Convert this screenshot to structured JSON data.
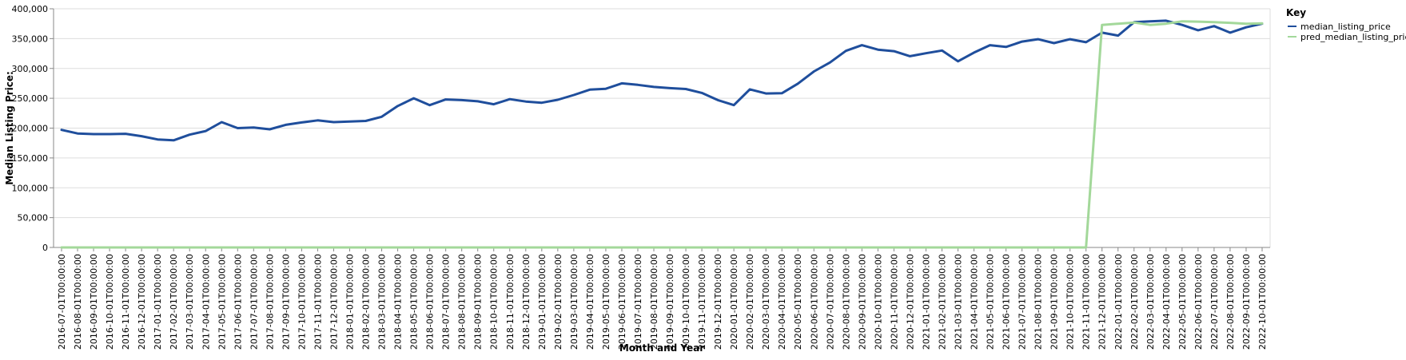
{
  "chart_data": {
    "type": "line",
    "xlabel": "Month and Year",
    "ylabel": "Median Listing Price:",
    "ylim": [
      0,
      400000
    ],
    "y_ticks": [
      0,
      50000,
      100000,
      150000,
      200000,
      250000,
      300000,
      350000,
      400000
    ],
    "y_tick_labels": [
      "0",
      "50,000",
      "100,000",
      "150,000",
      "200,000",
      "250,000",
      "300,000",
      "350,000",
      "400,000"
    ],
    "grid": true,
    "legend": {
      "title": "Key",
      "placement": "top-right"
    },
    "x": [
      "2016-07-01T00:00:00",
      "2016-08-01T00:00:00",
      "2016-09-01T00:00:00",
      "2016-10-01T00:00:00",
      "2016-11-01T00:00:00",
      "2016-12-01T00:00:00",
      "2017-01-01T00:00:00",
      "2017-02-01T00:00:00",
      "2017-03-01T00:00:00",
      "2017-04-01T00:00:00",
      "2017-05-01T00:00:00",
      "2017-06-01T00:00:00",
      "2017-07-01T00:00:00",
      "2017-08-01T00:00:00",
      "2017-09-01T00:00:00",
      "2017-10-01T00:00:00",
      "2017-11-01T00:00:00",
      "2017-12-01T00:00:00",
      "2018-01-01T00:00:00",
      "2018-02-01T00:00:00",
      "2018-03-01T00:00:00",
      "2018-04-01T00:00:00",
      "2018-05-01T00:00:00",
      "2018-06-01T00:00:00",
      "2018-07-01T00:00:00",
      "2018-08-01T00:00:00",
      "2018-09-01T00:00:00",
      "2018-10-01T00:00:00",
      "2018-11-01T00:00:00",
      "2018-12-01T00:00:00",
      "2019-01-01T00:00:00",
      "2019-02-01T00:00:00",
      "2019-03-01T00:00:00",
      "2019-04-01T00:00:00",
      "2019-05-01T00:00:00",
      "2019-06-01T00:00:00",
      "2019-07-01T00:00:00",
      "2019-08-01T00:00:00",
      "2019-09-01T00:00:00",
      "2019-10-01T00:00:00",
      "2019-11-01T00:00:00",
      "2019-12-01T00:00:00",
      "2020-01-01T00:00:00",
      "2020-02-01T00:00:00",
      "2020-03-01T00:00:00",
      "2020-04-01T00:00:00",
      "2020-05-01T00:00:00",
      "2020-06-01T00:00:00",
      "2020-07-01T00:00:00",
      "2020-08-01T00:00:00",
      "2020-09-01T00:00:00",
      "2020-10-01T00:00:00",
      "2020-11-01T00:00:00",
      "2020-12-01T00:00:00",
      "2021-01-01T00:00:00",
      "2021-02-01T00:00:00",
      "2021-03-01T00:00:00",
      "2021-04-01T00:00:00",
      "2021-05-01T00:00:00",
      "2021-06-01T00:00:00",
      "2021-07-01T00:00:00",
      "2021-08-01T00:00:00",
      "2021-09-01T00:00:00",
      "2021-10-01T00:00:00",
      "2021-11-01T00:00:00",
      "2021-12-01T00:00:00",
      "2022-01-01T00:00:00",
      "2022-02-01T00:00:00",
      "2022-03-01T00:00:00",
      "2022-04-01T00:00:00",
      "2022-05-01T00:00:00",
      "2022-06-01T00:00:00",
      "2022-07-01T00:00:00",
      "2022-08-01T00:00:00",
      "2022-09-01T00:00:00",
      "2022-10-01T00:00:00"
    ],
    "series": [
      {
        "name": "median_listing_price",
        "color": "#1f4e9c",
        "values": [
          197000,
          191000,
          190000,
          190000,
          190500,
          186500,
          181000,
          179500,
          189000,
          195000,
          210000,
          200000,
          201000,
          198000,
          205500,
          209500,
          213000,
          210000,
          211000,
          212000,
          219000,
          237000,
          250000,
          238500,
          248000,
          247000,
          245000,
          240000,
          248500,
          244500,
          242500,
          247500,
          255500,
          264500,
          266000,
          275000,
          272500,
          269000,
          267000,
          265500,
          259000,
          247000,
          238500,
          265000,
          258000,
          258500,
          274500,
          295000,
          310000,
          329500,
          339000,
          331500,
          329000,
          320500,
          325500,
          330000,
          312000,
          326500,
          339000,
          336000,
          345000,
          349000,
          342500,
          349000,
          344000,
          360000,
          355000,
          377500,
          379000,
          380000,
          373000,
          364000,
          371000,
          360000,
          369000,
          375000
        ]
      },
      {
        "name": "pred_median_listing_price",
        "color": "#a3d89a",
        "values": [
          0,
          0,
          0,
          0,
          0,
          0,
          0,
          0,
          0,
          0,
          0,
          0,
          0,
          0,
          0,
          0,
          0,
          0,
          0,
          0,
          0,
          0,
          0,
          0,
          0,
          0,
          0,
          0,
          0,
          0,
          0,
          0,
          0,
          0,
          0,
          0,
          0,
          0,
          0,
          0,
          0,
          0,
          0,
          0,
          0,
          0,
          0,
          0,
          0,
          0,
          0,
          0,
          0,
          0,
          0,
          0,
          0,
          0,
          0,
          0,
          0,
          0,
          0,
          0,
          0,
          373000,
          375000,
          377000,
          373000,
          375000,
          379000,
          378500,
          377500,
          376500,
          375000,
          375500
        ]
      }
    ]
  }
}
